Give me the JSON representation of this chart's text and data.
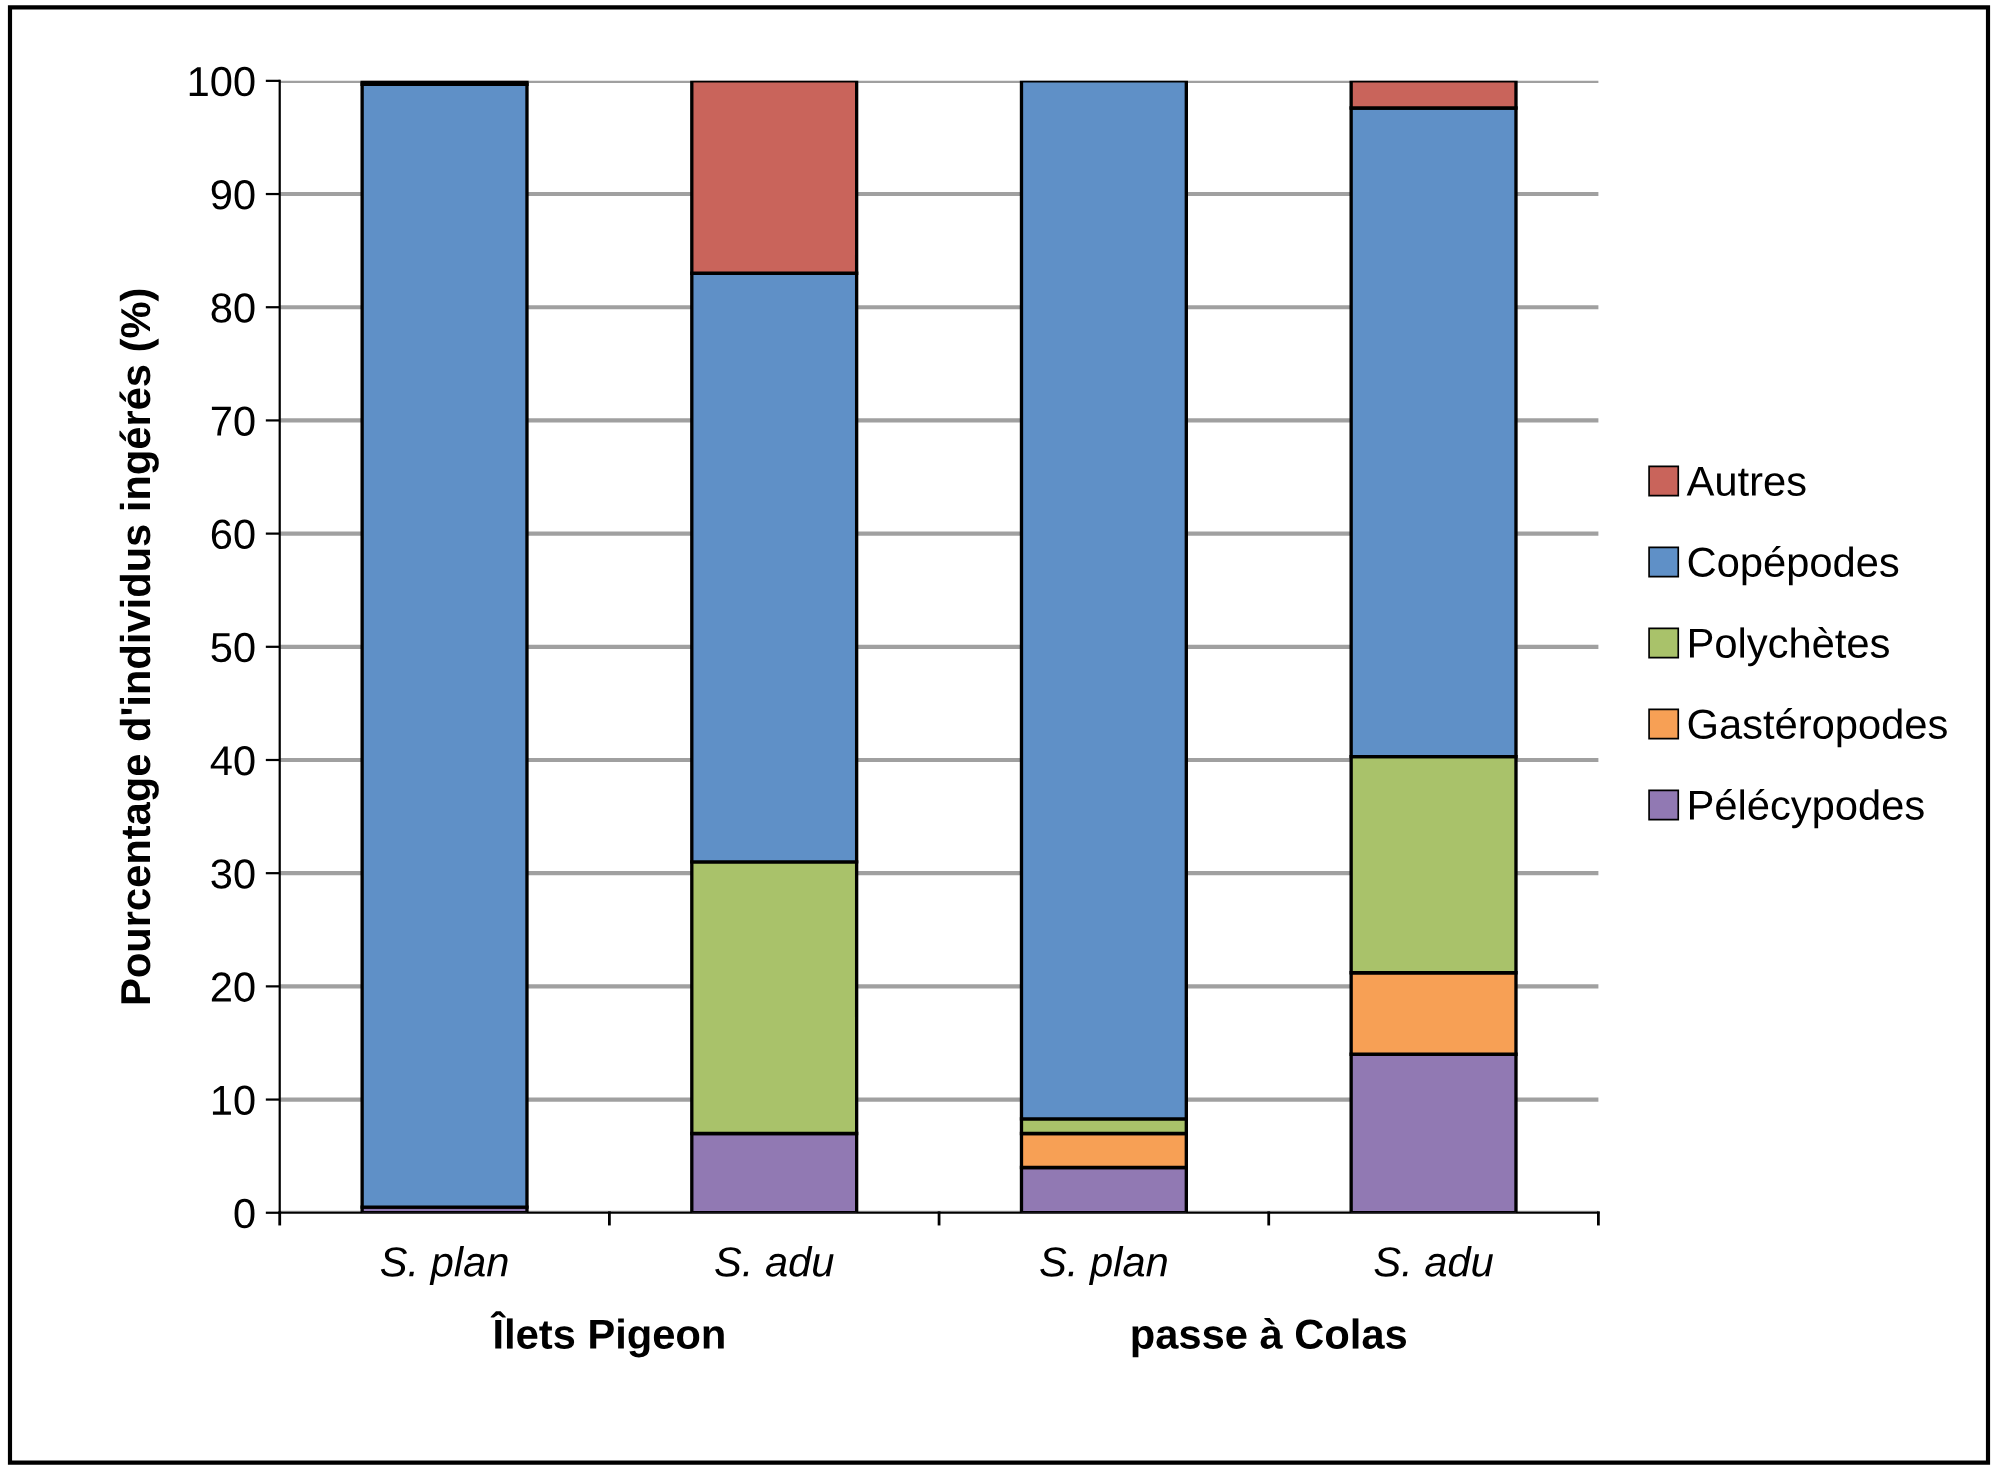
{
  "chart_data": {
    "type": "bar",
    "stacked": true,
    "ylabel": "Pourcentage d'individus ingérés (%)",
    "categories": [
      "S. plan",
      "S. adu",
      "S. plan",
      "S. adu"
    ],
    "annotations": [
      "Îlets Pigeon",
      "passe à Colas"
    ],
    "series": [
      {
        "name": "Pélécypodes",
        "color": "#9179b3",
        "values": [
          0.5,
          7,
          4,
          14
        ]
      },
      {
        "name": "Gastéropodes",
        "color": "#f7a055",
        "values": [
          0,
          0,
          3,
          7.2
        ]
      },
      {
        "name": "Polychètes",
        "color": "#a9c26a",
        "values": [
          0,
          24,
          1.3,
          19.1
        ]
      },
      {
        "name": "Copépodes",
        "color": "#5f90c7",
        "values": [
          99.2,
          52,
          91.7,
          57.3
        ]
      },
      {
        "name": "Autres",
        "color": "#c9645b",
        "values": [
          0.3,
          17,
          0,
          2.4
        ]
      }
    ],
    "ylim": [
      0,
      100
    ],
    "yticks": [
      0,
      10,
      20,
      30,
      40,
      50,
      60,
      70,
      80,
      90,
      100
    ],
    "grid": "y",
    "legend": "right"
  }
}
